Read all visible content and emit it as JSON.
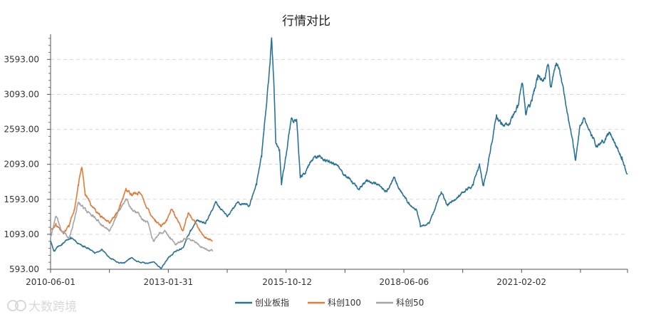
{
  "chart_data": {
    "type": "line",
    "title": "行情对比",
    "xlabel": "",
    "ylabel": "",
    "ylim": [
      593,
      3953
    ],
    "yticks": [
      593.0,
      1093.0,
      1593.0,
      2093.0,
      2593.0,
      3093.0,
      3593.0
    ],
    "ytick_labels": [
      "593.00",
      "1093.00",
      "1593.00",
      "2093.00",
      "2593.00",
      "3093.00",
      "3593.00"
    ],
    "x_range": [
      "2010-06-01",
      "2023-06-30"
    ],
    "xtick_labels": [
      "2010-06-01",
      "2013-01-31",
      "2015-10-12",
      "2018-06-06",
      "2021-02-02"
    ],
    "legend_position": "bottom-center",
    "grid": "horizontal dashed",
    "series": [
      {
        "name": "创业板指",
        "color": "#2a7396",
        "points": [
          [
            "2010-06-01",
            1000
          ],
          [
            "2010-07-01",
            860
          ],
          [
            "2010-09-01",
            950
          ],
          [
            "2010-11-15",
            1050
          ],
          [
            "2011-01-15",
            960
          ],
          [
            "2011-04-01",
            900
          ],
          [
            "2011-06-01",
            820
          ],
          [
            "2011-08-01",
            880
          ],
          [
            "2011-10-01",
            760
          ],
          [
            "2011-12-15",
            690
          ],
          [
            "2012-02-01",
            680
          ],
          [
            "2012-04-01",
            760
          ],
          [
            "2012-06-01",
            700
          ],
          [
            "2012-08-01",
            680
          ],
          [
            "2012-10-01",
            700
          ],
          [
            "2012-12-01",
            605
          ],
          [
            "2013-02-01",
            760
          ],
          [
            "2013-04-01",
            850
          ],
          [
            "2013-06-01",
            900
          ],
          [
            "2013-08-01",
            1150
          ],
          [
            "2013-10-01",
            1300
          ],
          [
            "2013-12-01",
            1250
          ],
          [
            "2014-03-01",
            1550
          ],
          [
            "2014-06-01",
            1350
          ],
          [
            "2014-09-01",
            1550
          ],
          [
            "2014-12-01",
            1500
          ],
          [
            "2015-02-01",
            1800
          ],
          [
            "2015-03-15",
            2200
          ],
          [
            "2015-04-15",
            2800
          ],
          [
            "2015-05-20",
            3500
          ],
          [
            "2015-06-05",
            3900
          ],
          [
            "2015-06-25",
            3200
          ],
          [
            "2015-07-10",
            2400
          ],
          [
            "2015-08-10",
            2300
          ],
          [
            "2015-08-26",
            1800
          ],
          [
            "2015-10-01",
            2200
          ],
          [
            "2015-11-15",
            2750
          ],
          [
            "2015-12-31",
            2700
          ],
          [
            "2016-01-28",
            1900
          ],
          [
            "2016-03-01",
            1950
          ],
          [
            "2016-05-01",
            2150
          ],
          [
            "2016-07-01",
            2200
          ],
          [
            "2016-09-01",
            2150
          ],
          [
            "2016-11-15",
            2100
          ],
          [
            "2017-01-15",
            1950
          ],
          [
            "2017-04-01",
            1850
          ],
          [
            "2017-06-01",
            1750
          ],
          [
            "2017-08-01",
            1850
          ],
          [
            "2017-11-01",
            1800
          ],
          [
            "2018-01-15",
            1700
          ],
          [
            "2018-03-15",
            1900
          ],
          [
            "2018-05-15",
            1700
          ],
          [
            "2018-07-15",
            1550
          ],
          [
            "2018-09-15",
            1450
          ],
          [
            "2018-10-19",
            1200
          ],
          [
            "2018-12-31",
            1250
          ],
          [
            "2019-02-15",
            1450
          ],
          [
            "2019-04-10",
            1700
          ],
          [
            "2019-06-01",
            1500
          ],
          [
            "2019-09-01",
            1650
          ],
          [
            "2019-12-31",
            1800
          ],
          [
            "2020-02-20",
            2100
          ],
          [
            "2020-03-23",
            1800
          ],
          [
            "2020-05-01",
            2100
          ],
          [
            "2020-07-10",
            2800
          ],
          [
            "2020-09-01",
            2650
          ],
          [
            "2020-11-01",
            2700
          ],
          [
            "2020-12-31",
            2900
          ],
          [
            "2021-02-10",
            3250
          ],
          [
            "2021-03-10",
            2800
          ],
          [
            "2021-05-01",
            3000
          ],
          [
            "2021-06-15",
            3300
          ],
          [
            "2021-08-01",
            3300
          ],
          [
            "2021-09-15",
            3500
          ],
          [
            "2021-10-01",
            3200
          ],
          [
            "2021-11-15",
            3500
          ],
          [
            "2021-12-15",
            3450
          ],
          [
            "2022-01-20",
            3100
          ],
          [
            "2022-03-15",
            2600
          ],
          [
            "2022-04-26",
            2150
          ],
          [
            "2022-06-01",
            2650
          ],
          [
            "2022-07-10",
            2750
          ],
          [
            "2022-09-01",
            2500
          ],
          [
            "2022-10-20",
            2350
          ],
          [
            "2022-12-15",
            2400
          ],
          [
            "2023-02-01",
            2550
          ],
          [
            "2023-04-01",
            2350
          ],
          [
            "2023-05-15",
            2200
          ],
          [
            "2023-06-30",
            1950
          ]
        ]
      },
      {
        "name": "科创100",
        "color": "#e07b39",
        "points": [
          [
            "2010-06-01",
            1150
          ],
          [
            "2010-07-15",
            1250
          ],
          [
            "2010-09-15",
            1100
          ],
          [
            "2010-11-01",
            1200
          ],
          [
            "2010-12-15",
            1450
          ],
          [
            "2011-01-15",
            1800
          ],
          [
            "2011-02-15",
            2050
          ],
          [
            "2011-03-15",
            1650
          ],
          [
            "2011-05-01",
            1500
          ],
          [
            "2011-06-15",
            1400
          ],
          [
            "2011-08-01",
            1350
          ],
          [
            "2011-10-01",
            1250
          ],
          [
            "2011-11-15",
            1350
          ],
          [
            "2012-01-01",
            1500
          ],
          [
            "2012-02-15",
            1750
          ],
          [
            "2012-04-01",
            1650
          ],
          [
            "2012-06-01",
            1700
          ],
          [
            "2012-07-15",
            1550
          ],
          [
            "2012-09-01",
            1400
          ],
          [
            "2012-10-15",
            1300
          ],
          [
            "2012-12-01",
            1200
          ],
          [
            "2013-01-15",
            1300
          ],
          [
            "2013-03-01",
            1450
          ],
          [
            "2013-04-15",
            1300
          ],
          [
            "2013-06-01",
            1150
          ],
          [
            "2013-07-15",
            1400
          ],
          [
            "2013-09-01",
            1300
          ],
          [
            "2013-10-15",
            1150
          ],
          [
            "2013-12-01",
            1050
          ],
          [
            "2014-02-01",
            1000
          ]
        ]
      },
      {
        "name": "科创50",
        "color": "#a5a5a5",
        "points": [
          [
            "2010-06-01",
            1050
          ],
          [
            "2010-07-15",
            1350
          ],
          [
            "2010-09-01",
            1150
          ],
          [
            "2010-11-01",
            1050
          ],
          [
            "2010-12-15",
            1300
          ],
          [
            "2011-01-15",
            1550
          ],
          [
            "2011-02-15",
            1500
          ],
          [
            "2011-04-01",
            1400
          ],
          [
            "2011-05-15",
            1350
          ],
          [
            "2011-07-01",
            1300
          ],
          [
            "2011-08-15",
            1200
          ],
          [
            "2011-10-01",
            1150
          ],
          [
            "2011-11-15",
            1300
          ],
          [
            "2012-01-01",
            1450
          ],
          [
            "2012-02-15",
            1600
          ],
          [
            "2012-04-01",
            1450
          ],
          [
            "2012-05-15",
            1400
          ],
          [
            "2012-07-01",
            1300
          ],
          [
            "2012-08-15",
            1250
          ],
          [
            "2012-10-01",
            1000
          ],
          [
            "2012-11-15",
            1100
          ],
          [
            "2013-01-01",
            1150
          ],
          [
            "2013-02-15",
            1050
          ],
          [
            "2013-04-01",
            950
          ],
          [
            "2013-05-15",
            1000
          ],
          [
            "2013-07-01",
            1050
          ],
          [
            "2013-08-15",
            1000
          ],
          [
            "2013-10-01",
            950
          ],
          [
            "2013-11-15",
            900
          ],
          [
            "2014-02-01",
            850
          ]
        ]
      }
    ]
  },
  "watermark": "大数跨境"
}
